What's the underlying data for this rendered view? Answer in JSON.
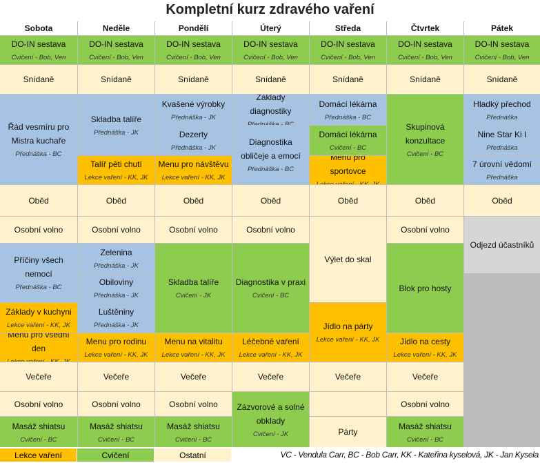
{
  "title": "Kompletní kurz zdravého vaření",
  "days": [
    "Sobota",
    "Neděle",
    "Pondělí",
    "Úterý",
    "Středa",
    "Čtvrtek",
    "Pátek"
  ],
  "cells": [
    {
      "c": 0,
      "r": 1,
      "span": 1,
      "color": "green",
      "t": "DO-IN sestava",
      "s": "Cvičení - Bob, Ven"
    },
    {
      "c": 1,
      "r": 1,
      "span": 1,
      "color": "green",
      "t": "DO-IN sestava",
      "s": "Cvičení - Bob, Ven"
    },
    {
      "c": 2,
      "r": 1,
      "span": 1,
      "color": "green",
      "t": "DO-IN sestava",
      "s": "Cvičení - Bob, Ven"
    },
    {
      "c": 3,
      "r": 1,
      "span": 1,
      "color": "green",
      "t": "DO-IN sestava",
      "s": "Cvičení - Bob, Ven"
    },
    {
      "c": 4,
      "r": 1,
      "span": 1,
      "color": "green",
      "t": "DO-IN sestava",
      "s": "Cvičení - Bob, Ven"
    },
    {
      "c": 5,
      "r": 1,
      "span": 1,
      "color": "green",
      "t": "DO-IN sestava",
      "s": "Cvičení - Bob, Ven"
    },
    {
      "c": 6,
      "r": 1,
      "span": 1,
      "color": "green",
      "t": "DO-IN sestava",
      "s": "Cvičení - Bob, Ven"
    },
    {
      "c": 0,
      "r": 2,
      "span": 1,
      "color": "cream",
      "t": "Snídaně",
      "s": ""
    },
    {
      "c": 1,
      "r": 2,
      "span": 1,
      "color": "cream",
      "t": "Snídaně",
      "s": ""
    },
    {
      "c": 2,
      "r": 2,
      "span": 1,
      "color": "cream",
      "t": "Snídaně",
      "s": ""
    },
    {
      "c": 3,
      "r": 2,
      "span": 1,
      "color": "cream",
      "t": "Snídaně",
      "s": ""
    },
    {
      "c": 4,
      "r": 2,
      "span": 1,
      "color": "cream",
      "t": "Snídaně",
      "s": ""
    },
    {
      "c": 5,
      "r": 2,
      "span": 1,
      "color": "cream",
      "t": "Snídaně",
      "s": ""
    },
    {
      "c": 6,
      "r": 2,
      "span": 1,
      "color": "cream",
      "t": "Snídaně",
      "s": ""
    },
    {
      "c": 0,
      "r": 3,
      "span": 3,
      "color": "blue",
      "t": "Řád vesmíru pro Mistra kuchaře",
      "s": "Přednáška - BC"
    },
    {
      "c": 1,
      "r": 3,
      "span": 2,
      "color": "blue",
      "t": "Skladba talíře",
      "s": "Přednáška - JK"
    },
    {
      "c": 1,
      "r": 5,
      "span": 1,
      "color": "yellow",
      "t": "Talíř pěti chutí",
      "s": "Lekce vaření - KK, JK"
    },
    {
      "c": 2,
      "r": 3,
      "span": 1,
      "color": "blue",
      "t": "Kvašené výrobky",
      "s": "Přednáška - JK"
    },
    {
      "c": 2,
      "r": 4,
      "span": 1,
      "color": "blue",
      "t": "Dezerty",
      "s": "Přednáška - JK"
    },
    {
      "c": 2,
      "r": 5,
      "span": 1,
      "color": "yellow",
      "t": "Menu pro návštěvu",
      "s": "Lekce vaření - KK, JK"
    },
    {
      "c": 3,
      "r": 3,
      "span": 1,
      "color": "blue",
      "t": "Základy diagnostiky",
      "s": "Přednáška - BC"
    },
    {
      "c": 3,
      "r": 4,
      "span": 2,
      "color": "blue",
      "t": "Diagnostika obličeje a emocí",
      "s": "Přednáška - BC"
    },
    {
      "c": 4,
      "r": 3,
      "span": 1,
      "color": "blue",
      "t": "Domácí lékárna",
      "s": "Přednáška - BC"
    },
    {
      "c": 4,
      "r": 4,
      "span": 1,
      "color": "green",
      "t": "Domácí lékárna",
      "s": "Cvičení - BC"
    },
    {
      "c": 4,
      "r": 5,
      "span": 1,
      "color": "yellow",
      "t": "Menu pro sportovce",
      "s": "Lekce vaření - KK, JK"
    },
    {
      "c": 5,
      "r": 3,
      "span": 3,
      "color": "green",
      "t": "Skupinová konzultace",
      "s": "Cvičení - BC"
    },
    {
      "c": 6,
      "r": 3,
      "span": 1,
      "color": "blue",
      "t": "Hladký přechod",
      "s": "Přednáška"
    },
    {
      "c": 6,
      "r": 4,
      "span": 1,
      "color": "blue",
      "t": "Nine Star Ki I",
      "s": "Přednáška"
    },
    {
      "c": 6,
      "r": 5,
      "span": 1,
      "color": "blue",
      "t": "7 úrovní vědomí",
      "s": "Přednáška"
    },
    {
      "c": 0,
      "r": 6,
      "span": 1,
      "color": "cream",
      "t": "Oběd",
      "s": ""
    },
    {
      "c": 1,
      "r": 6,
      "span": 1,
      "color": "cream",
      "t": "Oběd",
      "s": ""
    },
    {
      "c": 2,
      "r": 6,
      "span": 1,
      "color": "cream",
      "t": "Oběd",
      "s": ""
    },
    {
      "c": 3,
      "r": 6,
      "span": 1,
      "color": "cream",
      "t": "Oběd",
      "s": ""
    },
    {
      "c": 4,
      "r": 6,
      "span": 1,
      "color": "cream",
      "t": "Oběd",
      "s": ""
    },
    {
      "c": 5,
      "r": 6,
      "span": 1,
      "color": "cream",
      "t": "Oběd",
      "s": ""
    },
    {
      "c": 6,
      "r": 6,
      "span": 1,
      "color": "cream",
      "t": "Oběd",
      "s": ""
    },
    {
      "c": 0,
      "r": 7,
      "span": 1,
      "color": "cream",
      "t": "Osobní volno",
      "s": ""
    },
    {
      "c": 1,
      "r": 7,
      "span": 1,
      "color": "cream",
      "t": "Osobní volno",
      "s": ""
    },
    {
      "c": 2,
      "r": 7,
      "span": 1,
      "color": "cream",
      "t": "Osobní volno",
      "s": ""
    },
    {
      "c": 3,
      "r": 7,
      "span": 1,
      "color": "cream",
      "t": "Osobní volno",
      "s": ""
    },
    {
      "c": 4,
      "r": 7,
      "span": 3,
      "color": "cream",
      "t": "Výlet do skal",
      "s": ""
    },
    {
      "c": 5,
      "r": 7,
      "span": 1,
      "color": "cream",
      "t": "Osobní volno",
      "s": ""
    },
    {
      "c": 6,
      "r": 7,
      "span": 2,
      "color": "gray",
      "t": "Odjezd účastníků",
      "s": ""
    },
    {
      "c": 0,
      "r": 8,
      "span": 2,
      "color": "blue",
      "t": "Příčiny všech nemocí",
      "s": "Přednáška - BC"
    },
    {
      "c": 0,
      "r": 10,
      "span": 1,
      "color": "yellow",
      "t": "Základy v kuchyni",
      "s": "Lekce vaření - KK, JK"
    },
    {
      "c": 1,
      "r": 8,
      "span": 1,
      "color": "blue",
      "t": "Zelenina",
      "s": "Přednáška - JK"
    },
    {
      "c": 1,
      "r": 9,
      "span": 1,
      "color": "blue",
      "t": "Obiloviny",
      "s": "Přednáška - JK"
    },
    {
      "c": 1,
      "r": 10,
      "span": 1,
      "color": "blue",
      "t": "Luštěniny",
      "s": "Přednáška - JK"
    },
    {
      "c": 2,
      "r": 8,
      "span": 3,
      "color": "green",
      "t": "Skladba talíře",
      "s": "Cvičení - JK"
    },
    {
      "c": 3,
      "r": 8,
      "span": 3,
      "color": "green",
      "t": "Diagnostika v praxi",
      "s": "Cvičení - BC"
    },
    {
      "c": 5,
      "r": 8,
      "span": 3,
      "color": "green",
      "t": "Blok pro hosty",
      "s": ""
    },
    {
      "c": 6,
      "r": 9,
      "span": 7,
      "color": "white",
      "t": "",
      "s": ""
    },
    {
      "c": 0,
      "r": 11,
      "span": 1,
      "color": "yellow",
      "t": "Menu pro všední den",
      "s": "Lekce vaření - KK, JK"
    },
    {
      "c": 1,
      "r": 11,
      "span": 1,
      "color": "yellow",
      "t": "Menu pro rodinu",
      "s": "Lekce vaření - KK, JK"
    },
    {
      "c": 2,
      "r": 11,
      "span": 1,
      "color": "yellow",
      "t": "Menu na vitalitu",
      "s": "Lekce vaření - KK, JK"
    },
    {
      "c": 3,
      "r": 11,
      "span": 1,
      "color": "yellow",
      "t": "Léčebné vaření",
      "s": "Lekce vaření - KK, JK"
    },
    {
      "c": 4,
      "r": 10,
      "span": 2,
      "color": "yellow",
      "t": "Jídlo na párty",
      "s": "Lekce vaření - KK, JK"
    },
    {
      "c": 5,
      "r": 11,
      "span": 1,
      "color": "yellow",
      "t": "Jídlo na cesty",
      "s": "Lekce vaření - KK, JK"
    },
    {
      "c": 0,
      "r": 12,
      "span": 1,
      "color": "cream",
      "t": "Večeře",
      "s": ""
    },
    {
      "c": 1,
      "r": 12,
      "span": 1,
      "color": "cream",
      "t": "Večeře",
      "s": ""
    },
    {
      "c": 2,
      "r": 12,
      "span": 1,
      "color": "cream",
      "t": "Večeře",
      "s": ""
    },
    {
      "c": 3,
      "r": 12,
      "span": 1,
      "color": "cream",
      "t": "Večeře",
      "s": ""
    },
    {
      "c": 4,
      "r": 12,
      "span": 1,
      "color": "cream",
      "t": "Večeře",
      "s": ""
    },
    {
      "c": 5,
      "r": 12,
      "span": 1,
      "color": "cream",
      "t": "Večeře",
      "s": ""
    },
    {
      "c": 0,
      "r": 13,
      "span": 1,
      "color": "cream",
      "t": "Osobní volno",
      "s": ""
    },
    {
      "c": 1,
      "r": 13,
      "span": 1,
      "color": "cream",
      "t": "Osobní volno",
      "s": ""
    },
    {
      "c": 2,
      "r": 13,
      "span": 1,
      "color": "cream",
      "t": "Osobní volno",
      "s": ""
    },
    {
      "c": 3,
      "r": 13,
      "span": 2,
      "color": "green",
      "t": "Zázvorové a solné obklady",
      "s": "Cvičení - JK"
    },
    {
      "c": 4,
      "r": 13,
      "span": 1,
      "color": "cream",
      "t": "",
      "s": ""
    },
    {
      "c": 5,
      "r": 13,
      "span": 1,
      "color": "cream",
      "t": "Osobní volno",
      "s": ""
    },
    {
      "c": 0,
      "r": 14,
      "span": 1,
      "color": "green",
      "t": "Masáž shiatsu",
      "s": "Cvičení - BC"
    },
    {
      "c": 1,
      "r": 14,
      "span": 1,
      "color": "green",
      "t": "Masáž shiatsu",
      "s": "Cvičení - BC"
    },
    {
      "c": 2,
      "r": 14,
      "span": 1,
      "color": "green",
      "t": "Masáž shiatsu",
      "s": "Cvičení - BC"
    },
    {
      "c": 4,
      "r": 14,
      "span": 1,
      "color": "cream",
      "t": "Párty",
      "s": ""
    },
    {
      "c": 5,
      "r": 14,
      "span": 1,
      "color": "green",
      "t": "Masáž shiatsu",
      "s": "Cvičení - BC"
    }
  ],
  "legend": [
    {
      "label": "Lekce vaření",
      "color": "#ffc000"
    },
    {
      "label": "Cvičení",
      "color": "#8dcc4f"
    },
    {
      "label": "Ostatní",
      "color": "#fff2cc"
    }
  ],
  "credits": "VC - Vendula Carr, BC - Bob Carr, KK - Kateřina kyselová, JK - Jan Kysela"
}
